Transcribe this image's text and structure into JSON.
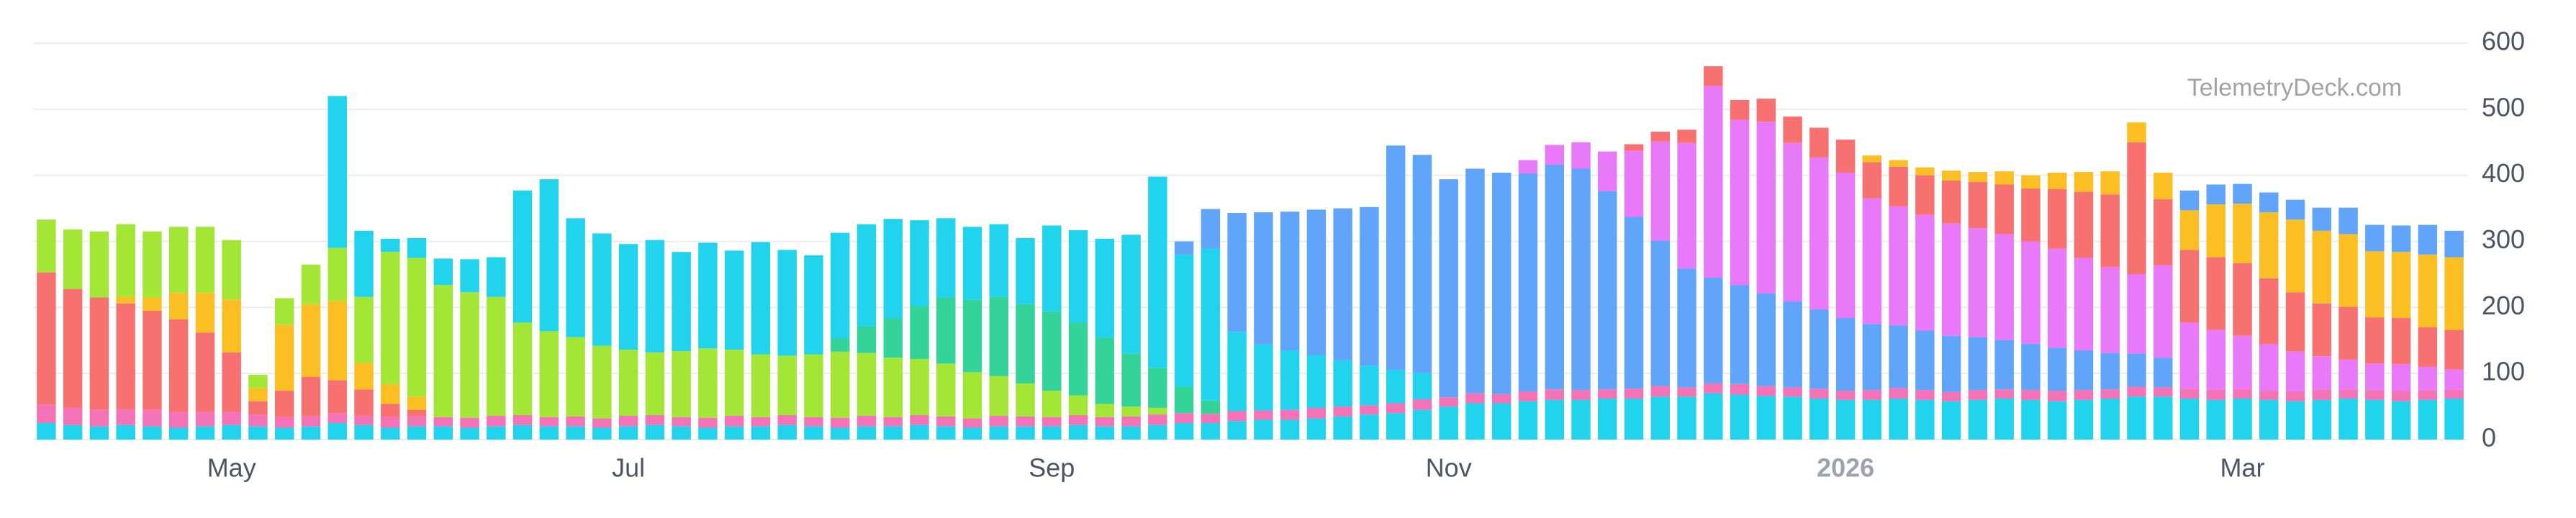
{
  "chart_data": {
    "type": "stacked_bar",
    "watermark": "TelemetryDeck.com",
    "categories": [
      null,
      null,
      null,
      null,
      null,
      null,
      null,
      "May",
      null,
      null,
      null,
      null,
      null,
      null,
      null,
      null,
      null,
      null,
      null,
      null,
      null,
      null,
      "Jul",
      null,
      null,
      null,
      null,
      null,
      null,
      null,
      null,
      null,
      null,
      null,
      null,
      null,
      null,
      null,
      "Sep",
      null,
      null,
      null,
      null,
      null,
      null,
      null,
      null,
      null,
      null,
      null,
      null,
      null,
      null,
      "Nov",
      null,
      null,
      null,
      null,
      null,
      null,
      null,
      null,
      null,
      null,
      null,
      null,
      null,
      null,
      "2026",
      null,
      null,
      null,
      null,
      null,
      null,
      null,
      null,
      null,
      null,
      null,
      null,
      null,
      null,
      "Mar",
      null,
      null,
      null,
      null,
      null,
      null,
      null,
      null
    ],
    "ylim": [
      0,
      600
    ],
    "yticks": [
      0,
      100,
      200,
      300,
      400,
      500,
      600
    ],
    "grid": true,
    "y_axis_side": "right",
    "series": [
      {
        "color": "#22d3ee",
        "values": [
          25,
          22,
          20,
          22,
          20,
          18,
          20,
          22,
          20,
          18,
          20,
          25,
          22,
          18,
          20,
          20,
          18,
          20,
          22,
          20,
          20,
          18,
          20,
          22,
          20,
          18,
          20,
          20,
          22,
          20,
          18,
          20,
          20,
          22,
          20,
          18,
          20,
          20,
          20,
          22,
          20,
          20,
          22,
          25,
          25,
          28,
          30,
          30,
          32,
          35,
          38,
          40,
          45,
          50,
          55,
          55,
          58,
          60,
          60,
          62,
          62,
          65,
          65,
          70,
          68,
          66,
          65,
          62,
          60,
          60,
          62,
          60,
          58,
          60,
          62,
          60,
          58,
          60,
          62,
          65,
          65,
          62,
          60,
          62,
          60,
          58,
          60,
          62,
          60,
          58,
          60,
          62
        ]
      },
      {
        "color": "#f472b6",
        "values": [
          28,
          26,
          25,
          24,
          25,
          24,
          22,
          20,
          18,
          16,
          15,
          15,
          14,
          16,
          15,
          14,
          15,
          16,
          15,
          14,
          15,
          14,
          16,
          15,
          14,
          15,
          16,
          14,
          15,
          14,
          15,
          16,
          14,
          15,
          15,
          14,
          16,
          15,
          14,
          15,
          14,
          15,
          16,
          15,
          14,
          15,
          14,
          15,
          16,
          15,
          14,
          15,
          16,
          14,
          15,
          14,
          15,
          16,
          15,
          14,
          15,
          16,
          14,
          15,
          16,
          15,
          14,
          15,
          14,
          15,
          16,
          15,
          14,
          15,
          14,
          15,
          16,
          15,
          14,
          15,
          14,
          15,
          16,
          15,
          14,
          15,
          16,
          14,
          15,
          16,
          15,
          14
        ]
      },
      {
        "color": "#60a5fa",
        "values": [
          0,
          0,
          0,
          0,
          0,
          0,
          0,
          0,
          0,
          0,
          0,
          0,
          0,
          0,
          0,
          0,
          0,
          0,
          0,
          0,
          0,
          0,
          0,
          0,
          0,
          0,
          0,
          0,
          0,
          0,
          0,
          0,
          0,
          0,
          0,
          0,
          0,
          0,
          0,
          0,
          0,
          0,
          0,
          0,
          0,
          0,
          0,
          0,
          0,
          0,
          0,
          0,
          0,
          330,
          340,
          335,
          330,
          340,
          335,
          300,
          260,
          220,
          180,
          160,
          150,
          140,
          130,
          120,
          110,
          100,
          95,
          90,
          85,
          80,
          75,
          70,
          65,
          60,
          55,
          50,
          45,
          0,
          0,
          0,
          0,
          0,
          0,
          0,
          0,
          0,
          0,
          0
        ]
      },
      {
        "color": "#e879f9",
        "values": [
          0,
          0,
          0,
          0,
          0,
          0,
          0,
          0,
          0,
          0,
          0,
          0,
          0,
          0,
          0,
          0,
          0,
          0,
          0,
          0,
          0,
          0,
          0,
          0,
          0,
          0,
          0,
          0,
          0,
          0,
          0,
          0,
          0,
          0,
          0,
          0,
          0,
          0,
          0,
          0,
          0,
          0,
          0,
          0,
          0,
          0,
          0,
          0,
          0,
          0,
          0,
          0,
          0,
          0,
          0,
          0,
          20,
          30,
          40,
          60,
          100,
          150,
          190,
          290,
          250,
          260,
          240,
          230,
          220,
          190,
          180,
          175,
          170,
          165,
          160,
          155,
          150,
          140,
          130,
          120,
          140,
          100,
          90,
          80,
          70,
          60,
          50,
          45,
          40,
          40,
          35,
          30
        ]
      },
      {
        "color": "#f87171",
        "values": [
          200,
          180,
          170,
          160,
          150,
          140,
          120,
          90,
          20,
          40,
          60,
          50,
          40,
          20,
          10,
          0,
          0,
          0,
          0,
          0,
          0,
          0,
          0,
          0,
          0,
          0,
          0,
          0,
          0,
          0,
          0,
          0,
          0,
          0,
          0,
          0,
          0,
          0,
          0,
          0,
          0,
          0,
          0,
          0,
          0,
          0,
          0,
          0,
          0,
          0,
          0,
          0,
          0,
          0,
          0,
          0,
          0,
          0,
          0,
          0,
          10,
          15,
          20,
          30,
          30,
          35,
          40,
          45,
          50,
          55,
          60,
          60,
          65,
          70,
          75,
          80,
          90,
          100,
          110,
          200,
          100,
          110,
          110,
          110,
          100,
          90,
          80,
          80,
          70,
          70,
          60,
          60
        ]
      },
      {
        "color": "#fbbf24",
        "values": [
          0,
          0,
          0,
          10,
          20,
          40,
          60,
          80,
          20,
          100,
          110,
          120,
          40,
          30,
          20,
          0,
          0,
          0,
          0,
          0,
          0,
          0,
          0,
          0,
          0,
          0,
          0,
          0,
          0,
          0,
          0,
          0,
          0,
          0,
          0,
          0,
          0,
          0,
          0,
          0,
          0,
          0,
          0,
          0,
          0,
          0,
          0,
          0,
          0,
          0,
          0,
          0,
          0,
          0,
          0,
          0,
          0,
          0,
          0,
          0,
          0,
          0,
          0,
          0,
          0,
          0,
          0,
          0,
          0,
          10,
          10,
          12,
          15,
          15,
          20,
          20,
          25,
          30,
          35,
          30,
          40,
          60,
          80,
          90,
          100,
          110,
          110,
          110,
          100,
          100,
          110,
          110
        ]
      },
      {
        "color": "#a3e635",
        "values": [
          80,
          90,
          100,
          110,
          100,
          100,
          100,
          90,
          20,
          40,
          60,
          80,
          100,
          200,
          210,
          200,
          190,
          180,
          140,
          130,
          120,
          110,
          100,
          95,
          100,
          105,
          100,
          95,
          90,
          95,
          100,
          95,
          90,
          85,
          80,
          70,
          60,
          50,
          40,
          30,
          20,
          15,
          10,
          0,
          0,
          0,
          0,
          0,
          0,
          0,
          0,
          0,
          0,
          0,
          0,
          0,
          0,
          0,
          0,
          0,
          0,
          0,
          0,
          0,
          0,
          0,
          0,
          0,
          0,
          0,
          0,
          0,
          0,
          0,
          0,
          0,
          0,
          0,
          0,
          0,
          0,
          0,
          0,
          0,
          0,
          0,
          0,
          0,
          0,
          0,
          0,
          0
        ]
      },
      {
        "color": "#34d399",
        "values": [
          0,
          0,
          0,
          0,
          0,
          0,
          0,
          0,
          0,
          0,
          0,
          0,
          0,
          0,
          0,
          0,
          0,
          0,
          0,
          0,
          0,
          0,
          0,
          0,
          0,
          0,
          0,
          0,
          0,
          0,
          20,
          40,
          60,
          80,
          100,
          110,
          120,
          120,
          120,
          110,
          100,
          80,
          60,
          40,
          20,
          0,
          0,
          0,
          0,
          0,
          0,
          0,
          0,
          0,
          0,
          0,
          0,
          0,
          0,
          0,
          0,
          0,
          0,
          0,
          0,
          0,
          0,
          0,
          0,
          0,
          0,
          0,
          0,
          0,
          0,
          0,
          0,
          0,
          0,
          0,
          0,
          0,
          0,
          0,
          0,
          0,
          0,
          0,
          0,
          0,
          0,
          0
        ]
      },
      {
        "color": "#22d3ee",
        "values": [
          0,
          0,
          0,
          0,
          0,
          0,
          0,
          0,
          0,
          0,
          0,
          230,
          100,
          20,
          30,
          40,
          50,
          60,
          200,
          230,
          180,
          170,
          160,
          170,
          150,
          160,
          150,
          170,
          160,
          150,
          160,
          155,
          150,
          130,
          120,
          110,
          110,
          100,
          130,
          140,
          150,
          180,
          290,
          200,
          230,
          120,
          100,
          90,
          80,
          70,
          60,
          50,
          40,
          0,
          0,
          0,
          0,
          0,
          0,
          0,
          0,
          0,
          0,
          0,
          0,
          0,
          0,
          0,
          0,
          0,
          0,
          0,
          0,
          0,
          0,
          0,
          0,
          0,
          0,
          0,
          0,
          0,
          0,
          0,
          0,
          0,
          0,
          0,
          0,
          0,
          0,
          0
        ]
      },
      {
        "color": "#60a5fa",
        "values": [
          0,
          0,
          0,
          0,
          0,
          0,
          0,
          0,
          0,
          0,
          0,
          0,
          0,
          0,
          0,
          0,
          0,
          0,
          0,
          0,
          0,
          0,
          0,
          0,
          0,
          0,
          0,
          0,
          0,
          0,
          0,
          0,
          0,
          0,
          0,
          0,
          0,
          0,
          0,
          0,
          0,
          0,
          0,
          20,
          60,
          180,
          200,
          210,
          220,
          230,
          240,
          340,
          330,
          0,
          0,
          0,
          0,
          0,
          0,
          0,
          0,
          0,
          0,
          0,
          0,
          0,
          0,
          0,
          0,
          0,
          0,
          0,
          0,
          0,
          0,
          0,
          0,
          0,
          0,
          0,
          0,
          30,
          30,
          30,
          30,
          30,
          35,
          40,
          40,
          40,
          45,
          40
        ]
      }
    ]
  }
}
